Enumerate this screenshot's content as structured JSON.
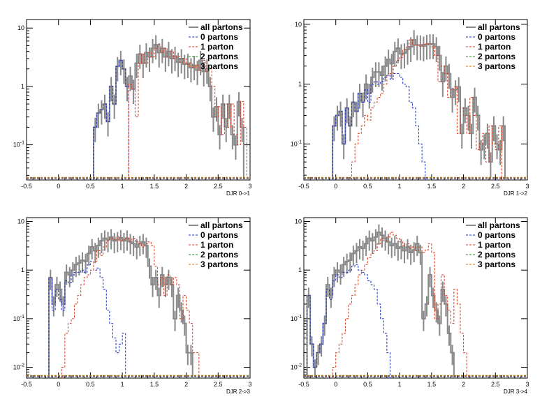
{
  "chart_data": [
    {
      "type": "histogram",
      "xlabel": "DJR 0->1",
      "x_ticks": [
        "-0.5",
        "0",
        "0.5",
        "1",
        "1.5",
        "2",
        "2.5",
        "3"
      ],
      "y_ticks": [
        "10",
        "1",
        "10^-1"
      ],
      "xlim": [
        -0.5,
        3
      ],
      "ylim": [
        0.025,
        14
      ],
      "log_y": true,
      "bin_width": 0.05,
      "legend": [
        "all partons",
        "0 partons",
        "1 parton",
        "2 partons",
        "3 partons"
      ],
      "legend_position": "top-right",
      "colors": {
        "all": "#888888",
        "p0": "#1a2fc8",
        "p1": "#d83a1e",
        "p2": "#1f8f1f",
        "p3": "#d9720b"
      },
      "series": [
        {
          "name": "all partons",
          "start": 0.55,
          "values": [
            0.2,
            0.35,
            0.4,
            0.5,
            0.25,
            1.0,
            0.5,
            2.2,
            2.8,
            2.0,
            1.0,
            1.5,
            0.9,
            2.5,
            3.6,
            2.5,
            3.8,
            3.2,
            4.5,
            5.2,
            3.8,
            4.5,
            3.2,
            4.0,
            3.0,
            3.3,
            2.6,
            3.0,
            2.4,
            2.5,
            2.1,
            2.3,
            1.9,
            2.8,
            1.8,
            2.0,
            1.0,
            0.3,
            0.45,
            0.15,
            0.5,
            0.2,
            0.5,
            0.15,
            0.1,
            0.55,
            0.2
          ]
        },
        {
          "name": "0 partons",
          "start": 0.55,
          "values": [
            0.2,
            0.35,
            0.4,
            0.5,
            0.25,
            1.0,
            0.5,
            2.2,
            2.8,
            2.0,
            1.0
          ]
        },
        {
          "name": "1 parton",
          "start": 1.1,
          "values": [
            1.1,
            0.9,
            0.3,
            2.5,
            3.6,
            2.5,
            3.8,
            3.2,
            4.5,
            5.2,
            3.8,
            4.5,
            3.2,
            4.0,
            3.0,
            3.3,
            2.6,
            3.0,
            2.4,
            2.5,
            2.1,
            2.3,
            1.9,
            2.8,
            1.8,
            2.0,
            1.0,
            0.3,
            0.45,
            0.15,
            0.5,
            0.2,
            0.5,
            0.15,
            0.1,
            0.55,
            0.2
          ]
        },
        {
          "name": "2 partons",
          "start": 0,
          "values": []
        },
        {
          "name": "3 partons",
          "start": 0,
          "values": []
        }
      ]
    },
    {
      "type": "histogram",
      "xlabel": "DJR 1->2",
      "x_ticks": [
        "-0.5",
        "0",
        "0.5",
        "1",
        "1.5",
        "2",
        "2.5",
        "3"
      ],
      "y_ticks": [
        "10",
        "1",
        "10^-1"
      ],
      "xlim": [
        -0.5,
        3
      ],
      "ylim": [
        0.025,
        12
      ],
      "log_y": true,
      "bin_width": 0.05,
      "legend": [
        "all partons",
        "0 partons",
        "1 parton",
        "2 partons",
        "3 partons"
      ],
      "legend_position": "top-right",
      "colors": {
        "all": "#888888",
        "p0": "#1a2fc8",
        "p1": "#d83a1e",
        "p2": "#1f8f1f",
        "p3": "#d9720b"
      },
      "series": [
        {
          "name": "all partons",
          "start": -0.05,
          "values": [
            0.2,
            0.3,
            0.35,
            0.1,
            0.4,
            0.2,
            0.5,
            0.35,
            0.7,
            0.5,
            1.0,
            0.7,
            1.3,
            1.6,
            1.6,
            1.4,
            2.0,
            2.6,
            2.2,
            3.5,
            4.0,
            3.2,
            3.3,
            3.8,
            4.2,
            5.5,
            4.5,
            4.5,
            4.3,
            4.6,
            4.7,
            4.7,
            4.2,
            3.0,
            1.1,
            2.0,
            1.5,
            0.6,
            0.8,
            0.9,
            0.15,
            0.4,
            0.3,
            0.15,
            0.6,
            0.3,
            0.08,
            0.1,
            0.15,
            0.05,
            0.2,
            0.1,
            0.08,
            0.2
          ]
        },
        {
          "name": "0 partons",
          "start": -0.05,
          "values": [
            0.2,
            0.3,
            0.35,
            0.1,
            0.4,
            0.2,
            0.5,
            0.35,
            0.7,
            0.5,
            0.8,
            0.5,
            1.0,
            1.1,
            1.0,
            1.1,
            1.3,
            1.4,
            1.2,
            1.5,
            1.5,
            1.3,
            1.0,
            0.9,
            0.5,
            0.4,
            0.2,
            0.1,
            0.05
          ]
        },
        {
          "name": "1 parton",
          "start": 0.25,
          "values": [
            0.05,
            0.1,
            0.15,
            0.2,
            0.3,
            0.25,
            0.4,
            0.5,
            0.6,
            0.7,
            1.0,
            1.4,
            1.5,
            2.0,
            2.5,
            2.8,
            3.8,
            4.2,
            5.5,
            4.5,
            4.5,
            4.3,
            4.6,
            4.7,
            4.7,
            4.2,
            3.0,
            1.1,
            2.0,
            1.5,
            0.6,
            0.8,
            0.9,
            0.15,
            0.4,
            0.3,
            0.15,
            0.6,
            0.3,
            0.08,
            0.1,
            0.15,
            0.05,
            0.2,
            0.1,
            0.08,
            0.2
          ]
        },
        {
          "name": "2 partons",
          "start": 0,
          "values": []
        },
        {
          "name": "3 partons",
          "start": 0,
          "values": []
        }
      ]
    },
    {
      "type": "histogram",
      "xlabel": "DJR 2->3",
      "x_ticks": [
        "-0.5",
        "0",
        "0.5",
        "1",
        "1.5",
        "2",
        "2.5",
        "3"
      ],
      "y_ticks": [
        "10",
        "1",
        "10^-1",
        "10^-2"
      ],
      "xlim": [
        -0.5,
        3
      ],
      "ylim": [
        0.006,
        12
      ],
      "log_y": true,
      "bin_width": 0.05,
      "legend": [
        "all partons",
        "0 partons",
        "1 parton",
        "2 partons",
        "3 partons"
      ],
      "legend_position": "top-right",
      "colors": {
        "all": "#888888",
        "p0": "#1a2fc8",
        "p1": "#d83a1e",
        "p2": "#1f8f1f",
        "p3": "#d9720b"
      },
      "series": [
        {
          "name": "all partons",
          "start": -0.15,
          "values": [
            0.7,
            0.2,
            0.5,
            0.4,
            0.2,
            0.9,
            0.8,
            1.0,
            1.3,
            1.4,
            1.6,
            1.5,
            2.2,
            3.0,
            2.5,
            3.2,
            4.0,
            4.5,
            4.2,
            4.8,
            4.0,
            4.2,
            4.6,
            4.0,
            4.5,
            3.8,
            3.5,
            3.0,
            3.5,
            3.8,
            3.2,
            1.2,
            0.5,
            0.7,
            0.3,
            0.8,
            0.5,
            0.7,
            0.5,
            0.1,
            0.3,
            0.15,
            0.08,
            0.02,
            0.02
          ]
        },
        {
          "name": "0 partons",
          "start": -0.15,
          "values": [
            0.7,
            0.15,
            0.4,
            0.25,
            0.15,
            0.6,
            0.55,
            0.8,
            0.9,
            0.9,
            1.0,
            0.9,
            1.3,
            1.5,
            1.0,
            1.1,
            0.7,
            0.4,
            0.15,
            0.08,
            0.04,
            0.02,
            0.03,
            0.05
          ]
        },
        {
          "name": "1 parton",
          "start": 0.05,
          "values": [
            0.01,
            0.05,
            0.08,
            0.1,
            0.2,
            0.3,
            0.5,
            0.7,
            0.8,
            1.0,
            1.5,
            2.5,
            2.0,
            3.0,
            4.0,
            4.5,
            4.2,
            4.8,
            4.0,
            4.2,
            4.6,
            4.0,
            4.5,
            3.8,
            3.5,
            3.0,
            3.5,
            3.8,
            3.2,
            1.2,
            0.5,
            0.7,
            0.3,
            0.8,
            0.5,
            0.7,
            0.5,
            0.1,
            0.3,
            0.15,
            0.08,
            0.02,
            0.02
          ]
        },
        {
          "name": "2 partons",
          "start": 0,
          "values": []
        },
        {
          "name": "3 partons",
          "start": 0,
          "values": []
        }
      ]
    },
    {
      "type": "histogram",
      "xlabel": "DJR 3->4",
      "x_ticks": [
        "-0.5",
        "0",
        "0.5",
        "1",
        "1.5",
        "2",
        "2.5",
        "3"
      ],
      "y_ticks": [
        "10",
        "1",
        "10^-1",
        "10^-2"
      ],
      "xlim": [
        -0.5,
        3
      ],
      "ylim": [
        0.006,
        12
      ],
      "log_y": true,
      "bin_width": 0.05,
      "legend": [
        "all partons",
        "0 partons",
        "1 parton",
        "2 partons",
        "3 partons"
      ],
      "legend_position": "top-right",
      "colors": {
        "all": "#888888",
        "p0": "#1a2fc8",
        "p1": "#d83a1e",
        "p2": "#1f8f1f",
        "p3": "#d9720b"
      },
      "series": [
        {
          "name": "all partons",
          "start": -0.45,
          "values": [
            0.3,
            0.03,
            0.01,
            0.02,
            0.03,
            0.08,
            0.5,
            0.3,
            0.8,
            1.0,
            0.9,
            1.3,
            1.5,
            1.6,
            2.2,
            2.5,
            3.0,
            2.8,
            3.5,
            4.5,
            4.0,
            4.8,
            6.0,
            5.2,
            4.5,
            3.8,
            3.2,
            3.5,
            2.8,
            3.0,
            2.5,
            3.0,
            2.3,
            2.6,
            3.5,
            2.3,
            0.1,
            0.2,
            0.8,
            0.3,
            0.15,
            0.08,
            0.4,
            0.2,
            0.05,
            0.02
          ]
        },
        {
          "name": "0 partons",
          "start": -0.45,
          "values": [
            0.3,
            0.03,
            0.01,
            0.02,
            0.03,
            0.08,
            0.4,
            0.25,
            0.6,
            0.8,
            0.7,
            0.9,
            0.9,
            1.0,
            1.2,
            1.3,
            1.0,
            0.9,
            0.8,
            0.6,
            0.5,
            0.4,
            0.2,
            0.1,
            0.05,
            0.02
          ]
        },
        {
          "name": "1 parton",
          "start": -0.05,
          "values": [
            0.01,
            0.02,
            0.03,
            0.05,
            0.1,
            0.2,
            0.3,
            0.5,
            0.8,
            1.0,
            1.3,
            1.8,
            2.2,
            2.5,
            3.5,
            4.5,
            4.0,
            4.8,
            6.0,
            5.2,
            4.5,
            3.8,
            3.2,
            3.5,
            2.8,
            3.0,
            2.5,
            3.0,
            2.3,
            2.6,
            3.5,
            2.3,
            0.1,
            0.2,
            0.8,
            0.3,
            0.15,
            0.08,
            0.4,
            0.2,
            0.05,
            0.02
          ]
        },
        {
          "name": "2 partons",
          "start": 0,
          "values": []
        },
        {
          "name": "3 partons",
          "start": 0,
          "values": []
        }
      ]
    }
  ]
}
